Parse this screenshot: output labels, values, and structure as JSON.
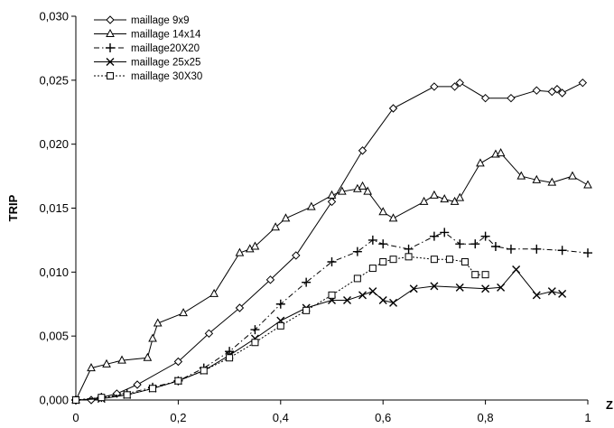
{
  "chart_data": {
    "type": "line",
    "xlabel": "Z",
    "ylabel": "TRIP",
    "xlim": [
      0,
      1
    ],
    "ylim": [
      0,
      0.03
    ],
    "x_ticks": [
      0,
      0.2,
      0.4,
      0.6,
      0.8,
      1
    ],
    "x_tick_labels": [
      "0",
      "0,2",
      "0,4",
      "0,6",
      "0,8",
      "1"
    ],
    "y_ticks": [
      0,
      0.005,
      0.01,
      0.015,
      0.02,
      0.025,
      0.03
    ],
    "y_tick_labels": [
      "0,000",
      "0,005",
      "0,010",
      "0,015",
      "0,020",
      "0,025",
      "0,030"
    ],
    "grid": false,
    "legend_position": "top-left",
    "series": [
      {
        "name": "maillage 9x9",
        "marker": "diamond",
        "line": "solid",
        "x": [
          0,
          0.03,
          0.08,
          0.12,
          0.2,
          0.26,
          0.32,
          0.38,
          0.43,
          0.5,
          0.56,
          0.62,
          0.7,
          0.74,
          0.75,
          0.8,
          0.85,
          0.9,
          0.93,
          0.94,
          0.95,
          0.99
        ],
        "y": [
          0,
          0,
          0.0005,
          0.0012,
          0.003,
          0.0052,
          0.0072,
          0.0094,
          0.0113,
          0.0155,
          0.0195,
          0.0228,
          0.0245,
          0.0245,
          0.0248,
          0.0236,
          0.0236,
          0.0242,
          0.0241,
          0.0243,
          0.024,
          0.0248
        ]
      },
      {
        "name": "maillage 14x14",
        "marker": "triangle",
        "line": "solid",
        "x": [
          0,
          0.03,
          0.06,
          0.09,
          0.14,
          0.15,
          0.16,
          0.21,
          0.27,
          0.32,
          0.34,
          0.35,
          0.39,
          0.41,
          0.46,
          0.5,
          0.52,
          0.55,
          0.56,
          0.57,
          0.6,
          0.62,
          0.68,
          0.7,
          0.72,
          0.74,
          0.75,
          0.79,
          0.82,
          0.83,
          0.87,
          0.9,
          0.93,
          0.97,
          1.0
        ],
        "y": [
          0,
          0.0025,
          0.0028,
          0.0031,
          0.0033,
          0.0048,
          0.006,
          0.0068,
          0.0083,
          0.0115,
          0.0118,
          0.012,
          0.0135,
          0.0142,
          0.0151,
          0.016,
          0.0163,
          0.0165,
          0.0167,
          0.0163,
          0.0147,
          0.0142,
          0.0155,
          0.016,
          0.0157,
          0.0155,
          0.0158,
          0.0185,
          0.0192,
          0.0193,
          0.0175,
          0.0172,
          0.017,
          0.0175,
          0.0168
        ]
      },
      {
        "name": "maillage20X20",
        "marker": "plus",
        "line": "dashdot",
        "x": [
          0,
          0.05,
          0.1,
          0.15,
          0.2,
          0.25,
          0.3,
          0.35,
          0.4,
          0.45,
          0.5,
          0.55,
          0.58,
          0.6,
          0.65,
          0.7,
          0.72,
          0.75,
          0.78,
          0.8,
          0.82,
          0.85,
          0.9,
          0.95,
          1.0
        ],
        "y": [
          0,
          0.0002,
          0.0005,
          0.001,
          0.0015,
          0.0025,
          0.0038,
          0.0055,
          0.0075,
          0.0092,
          0.0108,
          0.0116,
          0.0125,
          0.0122,
          0.0118,
          0.0128,
          0.0131,
          0.0122,
          0.0122,
          0.0128,
          0.012,
          0.0118,
          0.0118,
          0.0117,
          0.0115
        ]
      },
      {
        "name": "maillage 25x25",
        "marker": "x",
        "line": "solid",
        "x": [
          0,
          0.05,
          0.1,
          0.15,
          0.2,
          0.25,
          0.3,
          0.35,
          0.4,
          0.45,
          0.5,
          0.53,
          0.56,
          0.58,
          0.6,
          0.62,
          0.66,
          0.7,
          0.75,
          0.8,
          0.83,
          0.86,
          0.9,
          0.93,
          0.95
        ],
        "y": [
          0,
          0.0001,
          0.0004,
          0.0009,
          0.0015,
          0.0023,
          0.0035,
          0.0048,
          0.0062,
          0.0072,
          0.0078,
          0.0078,
          0.0082,
          0.0085,
          0.0078,
          0.0076,
          0.0087,
          0.0089,
          0.0088,
          0.0087,
          0.0088,
          0.0102,
          0.0082,
          0.0085,
          0.0083
        ]
      },
      {
        "name": "maillage 30X30",
        "marker": "square",
        "line": "dotted",
        "x": [
          0,
          0.05,
          0.1,
          0.15,
          0.2,
          0.25,
          0.3,
          0.35,
          0.4,
          0.45,
          0.5,
          0.55,
          0.58,
          0.6,
          0.62,
          0.65,
          0.7,
          0.73,
          0.76,
          0.78,
          0.8
        ],
        "y": [
          0,
          0.0002,
          0.0004,
          0.0009,
          0.0015,
          0.0023,
          0.0033,
          0.0045,
          0.0058,
          0.007,
          0.0082,
          0.0095,
          0.0103,
          0.0108,
          0.011,
          0.0112,
          0.011,
          0.011,
          0.0108,
          0.0098,
          0.0098
        ]
      }
    ]
  }
}
